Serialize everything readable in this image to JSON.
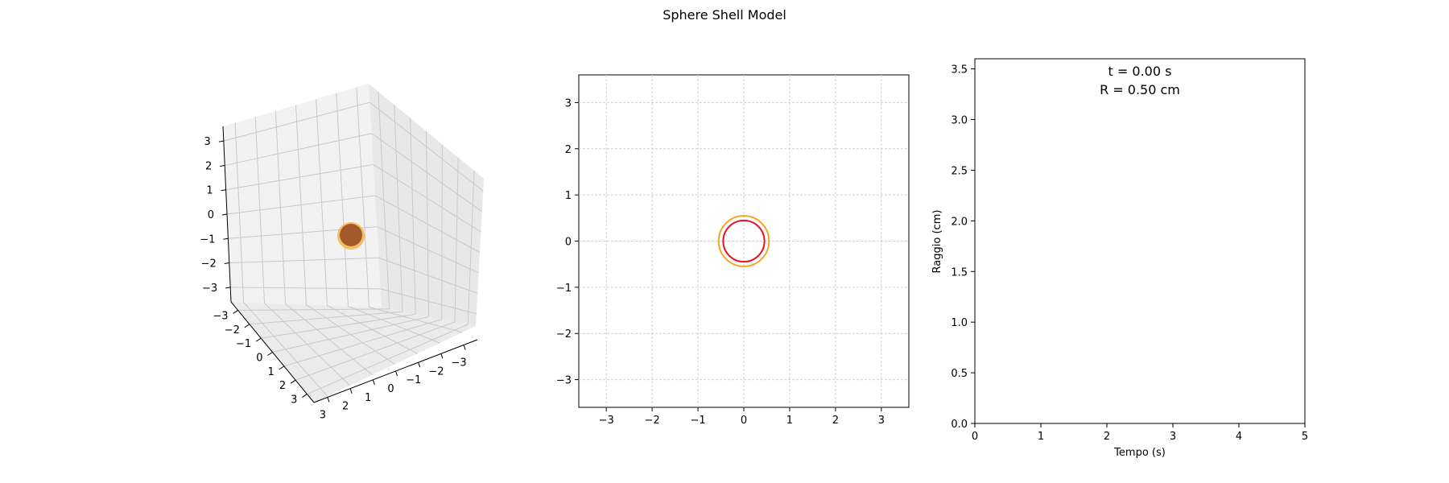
{
  "figure_title": "Sphere Shell Model",
  "chart_data": [
    {
      "type": "3d-surface",
      "panel": "3d-view",
      "xlim": [
        -3.6,
        3.6
      ],
      "ylim": [
        -3.6,
        3.6
      ],
      "zlim": [
        -3.6,
        3.6
      ],
      "x_ticks": [
        "−3",
        "−2",
        "−1",
        "0",
        "1",
        "2",
        "3"
      ],
      "y_ticks": [
        "−3",
        "−2",
        "−1",
        "0",
        "1",
        "2",
        "3"
      ],
      "z_ticks": [
        "−3",
        "−2",
        "−1",
        "0",
        "1",
        "2",
        "3"
      ],
      "grid": true,
      "spheres": [
        {
          "radius": 0.5,
          "color": "#f5a623"
        },
        {
          "radius": 0.45,
          "color": "#8b3a1a"
        }
      ]
    },
    {
      "type": "line",
      "panel": "cross-section",
      "xlim": [
        -3.6,
        3.6
      ],
      "ylim": [
        -3.6,
        3.6
      ],
      "x_ticks": [
        "−3",
        "−2",
        "−1",
        "0",
        "1",
        "2",
        "3"
      ],
      "y_ticks": [
        "−3",
        "−2",
        "−1",
        "0",
        "1",
        "2",
        "3"
      ],
      "grid": true,
      "circles": [
        {
          "radius": 0.55,
          "color": "#f5a623"
        },
        {
          "radius": 0.45,
          "color": "#e8112d"
        }
      ]
    },
    {
      "type": "line",
      "panel": "radius-vs-time",
      "xlabel": "Tempo (s)",
      "ylabel": "Raggio (cm)",
      "xlim": [
        0,
        5
      ],
      "ylim": [
        0,
        3.6
      ],
      "x_ticks": [
        "0",
        "1",
        "2",
        "3",
        "4",
        "5"
      ],
      "y_ticks": [
        "0.0",
        "0.5",
        "1.0",
        "1.5",
        "2.0",
        "2.5",
        "3.0",
        "3.5"
      ],
      "series": [],
      "annotation_time": "t = 0.00 s",
      "annotation_radius": "R = 0.50 cm"
    }
  ]
}
